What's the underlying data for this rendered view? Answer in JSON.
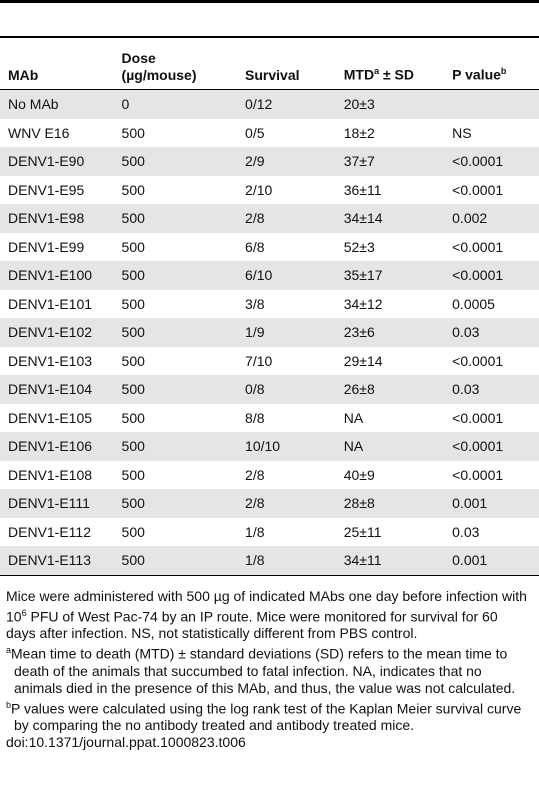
{
  "table": {
    "headers": [
      "MAb",
      [
        "Dose",
        "(µg/mouse)"
      ],
      "Survival",
      {
        "text": "MTD",
        "sup": "a",
        "suffix": "± SD"
      },
      {
        "text": "P value",
        "sup": "b"
      }
    ],
    "rows": [
      [
        "No MAb",
        "0",
        "0/12",
        "20±3",
        null
      ],
      [
        "WNV E16",
        "500",
        "0/5",
        "18±2",
        "NS"
      ],
      [
        "DENV1-E90",
        "500",
        "2/9",
        "37±7",
        "<0.0001"
      ],
      [
        "DENV1-E95",
        "500",
        "2/10",
        "36±11",
        "<0.0001"
      ],
      [
        "DENV1-E98",
        "500",
        "2/8",
        "34±14",
        "0.002"
      ],
      [
        "DENV1-E99",
        "500",
        "6/8",
        "52±3",
        "<0.0001"
      ],
      [
        "DENV1-E100",
        "500",
        "6/10",
        "35±17",
        "<0.0001"
      ],
      [
        "DENV1-E101",
        "500",
        "3/8",
        "34±12",
        "0.0005"
      ],
      [
        "DENV1-E102",
        "500",
        "1/9",
        "23±6",
        "0.03"
      ],
      [
        "DENV1-E103",
        "500",
        "7/10",
        "29±14",
        "<0.0001"
      ],
      [
        "DENV1-E104",
        "500",
        "0/8",
        "26±8",
        "0.03"
      ],
      [
        "DENV1-E105",
        "500",
        "8/8",
        "NA",
        "<0.0001"
      ],
      [
        "DENV1-E106",
        "500",
        "10/10",
        "NA",
        "<0.0001"
      ],
      [
        "DENV1-E108",
        "500",
        "2/8",
        "40±9",
        "<0.0001"
      ],
      [
        "DENV1-E111",
        "500",
        "2/8",
        "28±8",
        "0.001"
      ],
      [
        "DENV1-E112",
        "500",
        "1/8",
        "25±11",
        "0.03"
      ],
      [
        "DENV1-E113",
        "500",
        "1/8",
        "34±11",
        "0.001"
      ]
    ]
  },
  "footnotes": {
    "main": {
      "before": "Mice were administered with 500 µg of indicated MAbs one day before infection with 10",
      "sup": "6",
      "after": " PFU of West Pac-74 by an IP route. Mice were monitored for survival for 60 days after infection. NS, not statistically different from PBS control."
    },
    "notes": [
      {
        "mark": "a",
        "text": "Mean time to death (MTD) ± standard deviations (SD) refers to the mean time to death of the animals that succumbed to fatal infection. NA, indicates that no animals died in the presence of this MAb, and thus, the value was not calculated."
      },
      {
        "mark": "b",
        "text": "P values were calculated using the log rank test of the Kaplan Meier survival curve by comparing the no antibody treated and antibody treated mice."
      }
    ],
    "doi": "doi:10.1371/journal.ppat.1000823.t006"
  }
}
